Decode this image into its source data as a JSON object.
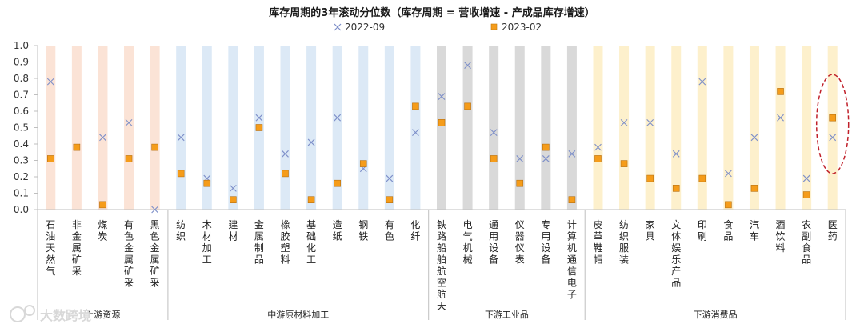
{
  "chart_data": {
    "type": "scatter",
    "title": "库存周期的3年滚动分位数（库存周期 = 营收增速 - 产成品库存增速）",
    "ylim": [
      0,
      1.0
    ],
    "yticks": [
      "0.0",
      "0.1",
      "0.2",
      "0.3",
      "0.4",
      "0.5",
      "0.6",
      "0.7",
      "0.8",
      "0.9",
      "1.0"
    ],
    "categories": [
      "石油天然气",
      "非金属矿采",
      "煤炭",
      "有色金属矿采",
      "黑色金属矿采",
      "纺织",
      "木材加工",
      "建材",
      "金属制品",
      "橡胶塑料",
      "基础化工",
      "造纸",
      "钢铁",
      "有色",
      "化纤",
      "铁路船舶航空航天",
      "电气机械",
      "通用设备",
      "仪器仪表",
      "专用设备",
      "计算机通信电子",
      "皮革鞋帽",
      "纺织服装",
      "家具",
      "文体娱乐产品",
      "印刷",
      "食品",
      "汽车",
      "酒饮料",
      "农副食品",
      "医药"
    ],
    "groups": [
      {
        "name": "上游资源",
        "start": 0,
        "end": 4,
        "color": "#fbe3d6"
      },
      {
        "name": "中游原材料加工",
        "start": 5,
        "end": 14,
        "color": "#dce9f6"
      },
      {
        "name": "下游工业品",
        "start": 15,
        "end": 20,
        "color": "#d9d9d9"
      },
      {
        "name": "下游消费品",
        "start": 21,
        "end": 30,
        "color": "#fdf0cc"
      }
    ],
    "series": [
      {
        "name": "2022-09",
        "marker": "x",
        "color": "#7d8fc9",
        "values": [
          0.78,
          0.38,
          0.44,
          0.53,
          0.0,
          0.44,
          0.19,
          0.13,
          0.56,
          0.34,
          0.41,
          0.56,
          0.25,
          0.19,
          0.47,
          0.69,
          0.88,
          0.47,
          0.31,
          0.31,
          0.34,
          0.38,
          0.53,
          0.53,
          0.34,
          0.78,
          0.22,
          0.44,
          0.56,
          0.19,
          0.44
        ]
      },
      {
        "name": "2023-02",
        "marker": "square",
        "color": "#f59c1a",
        "values": [
          0.31,
          0.38,
          0.03,
          0.31,
          0.38,
          0.22,
          0.16,
          0.06,
          0.5,
          0.22,
          0.06,
          0.16,
          0.28,
          0.06,
          0.63,
          0.53,
          0.63,
          0.31,
          0.16,
          0.38,
          0.06,
          0.31,
          0.28,
          0.19,
          0.13,
          0.19,
          0.03,
          0.13,
          0.72,
          0.09,
          0.56
        ]
      }
    ],
    "highlight": {
      "category": "医药",
      "style": "dashed-ellipse",
      "color": "#c0202a"
    }
  },
  "watermark": {
    "text": "大数跨境"
  }
}
